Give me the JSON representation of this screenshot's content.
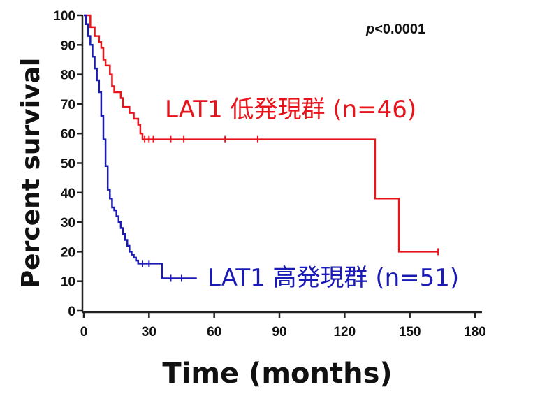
{
  "chart_data": {
    "type": "line",
    "title": "",
    "xlabel": "Time (months)",
    "ylabel": "Percent survival",
    "xlim": [
      0,
      180
    ],
    "ylim": [
      0,
      100
    ],
    "x_ticks": [
      0,
      30,
      60,
      90,
      120,
      150,
      180
    ],
    "y_ticks": [
      0,
      10,
      20,
      30,
      40,
      50,
      60,
      70,
      80,
      90,
      100
    ],
    "grid": false,
    "annotation": {
      "p": "p",
      "rest": "<0.0001"
    },
    "series": [
      {
        "name": "LAT1 低発現群 (n=46)",
        "color": "#e8141c",
        "x": [
          0,
          2,
          3,
          5,
          7,
          8,
          9,
          10,
          12,
          13,
          14,
          17,
          18,
          21,
          23,
          25,
          26,
          27,
          133,
          134,
          144,
          145,
          163
        ],
        "y": [
          100,
          100,
          96,
          93,
          91,
          89,
          85,
          83,
          80,
          76,
          74,
          72,
          69,
          67,
          65,
          63,
          60,
          58,
          58,
          38,
          38,
          20,
          20
        ],
        "censored": [
          [
            28,
            58
          ],
          [
            30,
            58
          ],
          [
            32,
            58
          ],
          [
            40,
            58
          ],
          [
            46,
            58
          ],
          [
            65,
            58
          ],
          [
            80,
            58
          ],
          [
            163,
            20
          ]
        ]
      },
      {
        "name": "LAT1 高発現群 (n=51)",
        "color": "#1a1ab4",
        "x": [
          0,
          1,
          2,
          3,
          4,
          5,
          6,
          7,
          8,
          9,
          10,
          11,
          12,
          13,
          14,
          15,
          16,
          17,
          18,
          19,
          20,
          21,
          22,
          23,
          24,
          25,
          26,
          35,
          36,
          52
        ],
        "y": [
          100,
          97,
          93,
          90,
          86,
          82,
          78,
          74,
          66,
          58,
          49,
          41,
          38,
          35,
          34,
          32,
          30,
          28,
          26,
          24,
          22,
          20,
          19,
          18,
          17,
          16,
          16,
          16,
          11,
          11
        ],
        "censored": [
          [
            27,
            16
          ],
          [
            30,
            16
          ],
          [
            40,
            11
          ],
          [
            45,
            11
          ]
        ]
      }
    ]
  }
}
